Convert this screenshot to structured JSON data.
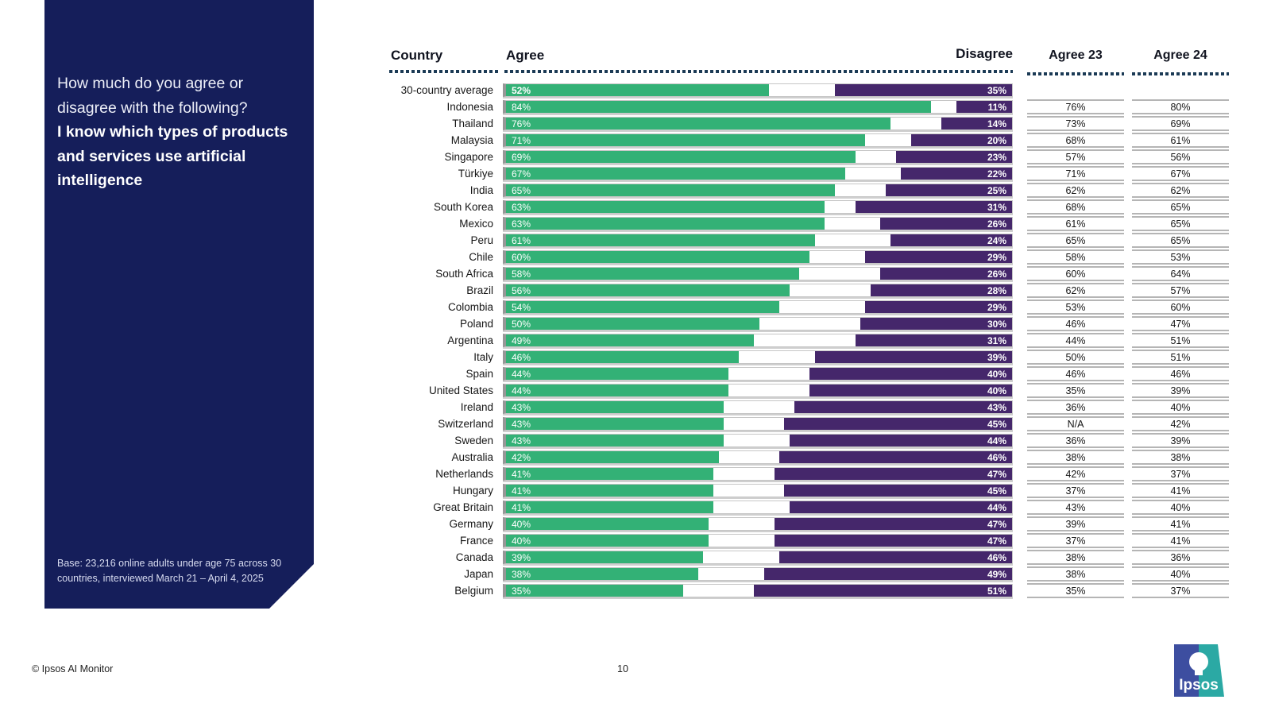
{
  "sidebar": {
    "question_intro": "How much do you agree or disagree with the following?",
    "question_statement": "I know which types of products and services use artificial intelligence",
    "base_note": "Base: 23,216 online adults under age 75 across 30 countries, interviewed March 21 – April 4, 2025"
  },
  "table_headers": {
    "country": "Country",
    "agree": "Agree",
    "disagree": "Disagree",
    "agree23": "Agree 23",
    "agree24": "Agree 24"
  },
  "footer": {
    "copyright": "© Ipsos AI Monitor",
    "page_number": "10",
    "logo_text": "Ipsos"
  },
  "colors": {
    "agree_bar": "#33B176",
    "disagree_bar": "#45276B",
    "sidebar_bg": "#151E5A",
    "dotted_line": "#1B3A55",
    "logo_blue": "#3D4EA0",
    "logo_teal": "#2BA9A4"
  },
  "chart_data": {
    "type": "bar",
    "orientation": "horizontal-paired",
    "title": "I know which types of products and services use artificial intelligence",
    "unit": "%",
    "xlim": [
      0,
      100
    ],
    "legend_position": "column-headers",
    "grid": false,
    "categories": [
      "30-country average",
      "Indonesia",
      "Thailand",
      "Malaysia",
      "Singapore",
      "Türkiye",
      "India",
      "South Korea",
      "Mexico",
      "Peru",
      "Chile",
      "South Africa",
      "Brazil",
      "Colombia",
      "Poland",
      "Argentina",
      "Italy",
      "Spain",
      "United States",
      "Ireland",
      "Switzerland",
      "Sweden",
      "Australia",
      "Netherlands",
      "Hungary",
      "Great Britain",
      "Germany",
      "France",
      "Canada",
      "Japan",
      "Belgium"
    ],
    "series": [
      {
        "name": "Agree",
        "values": [
          52,
          84,
          76,
          71,
          69,
          67,
          65,
          63,
          63,
          61,
          60,
          58,
          56,
          54,
          50,
          49,
          46,
          44,
          44,
          43,
          43,
          43,
          42,
          41,
          41,
          41,
          40,
          40,
          39,
          38,
          35
        ]
      },
      {
        "name": "Disagree",
        "values": [
          35,
          11,
          14,
          20,
          23,
          22,
          25,
          31,
          26,
          24,
          29,
          26,
          28,
          29,
          30,
          31,
          39,
          40,
          40,
          43,
          45,
          44,
          46,
          47,
          45,
          44,
          47,
          47,
          46,
          49,
          51
        ]
      },
      {
        "name": "Agree 23",
        "values": [
          null,
          76,
          73,
          68,
          57,
          71,
          62,
          68,
          61,
          65,
          58,
          60,
          62,
          53,
          46,
          44,
          50,
          46,
          35,
          36,
          "N/A",
          36,
          38,
          42,
          37,
          43,
          39,
          37,
          38,
          38,
          35
        ]
      },
      {
        "name": "Agree 24",
        "values": [
          null,
          80,
          69,
          61,
          56,
          67,
          62,
          65,
          65,
          65,
          53,
          64,
          57,
          60,
          47,
          51,
          51,
          46,
          39,
          40,
          42,
          39,
          38,
          37,
          41,
          40,
          41,
          41,
          36,
          40,
          37
        ]
      }
    ]
  }
}
